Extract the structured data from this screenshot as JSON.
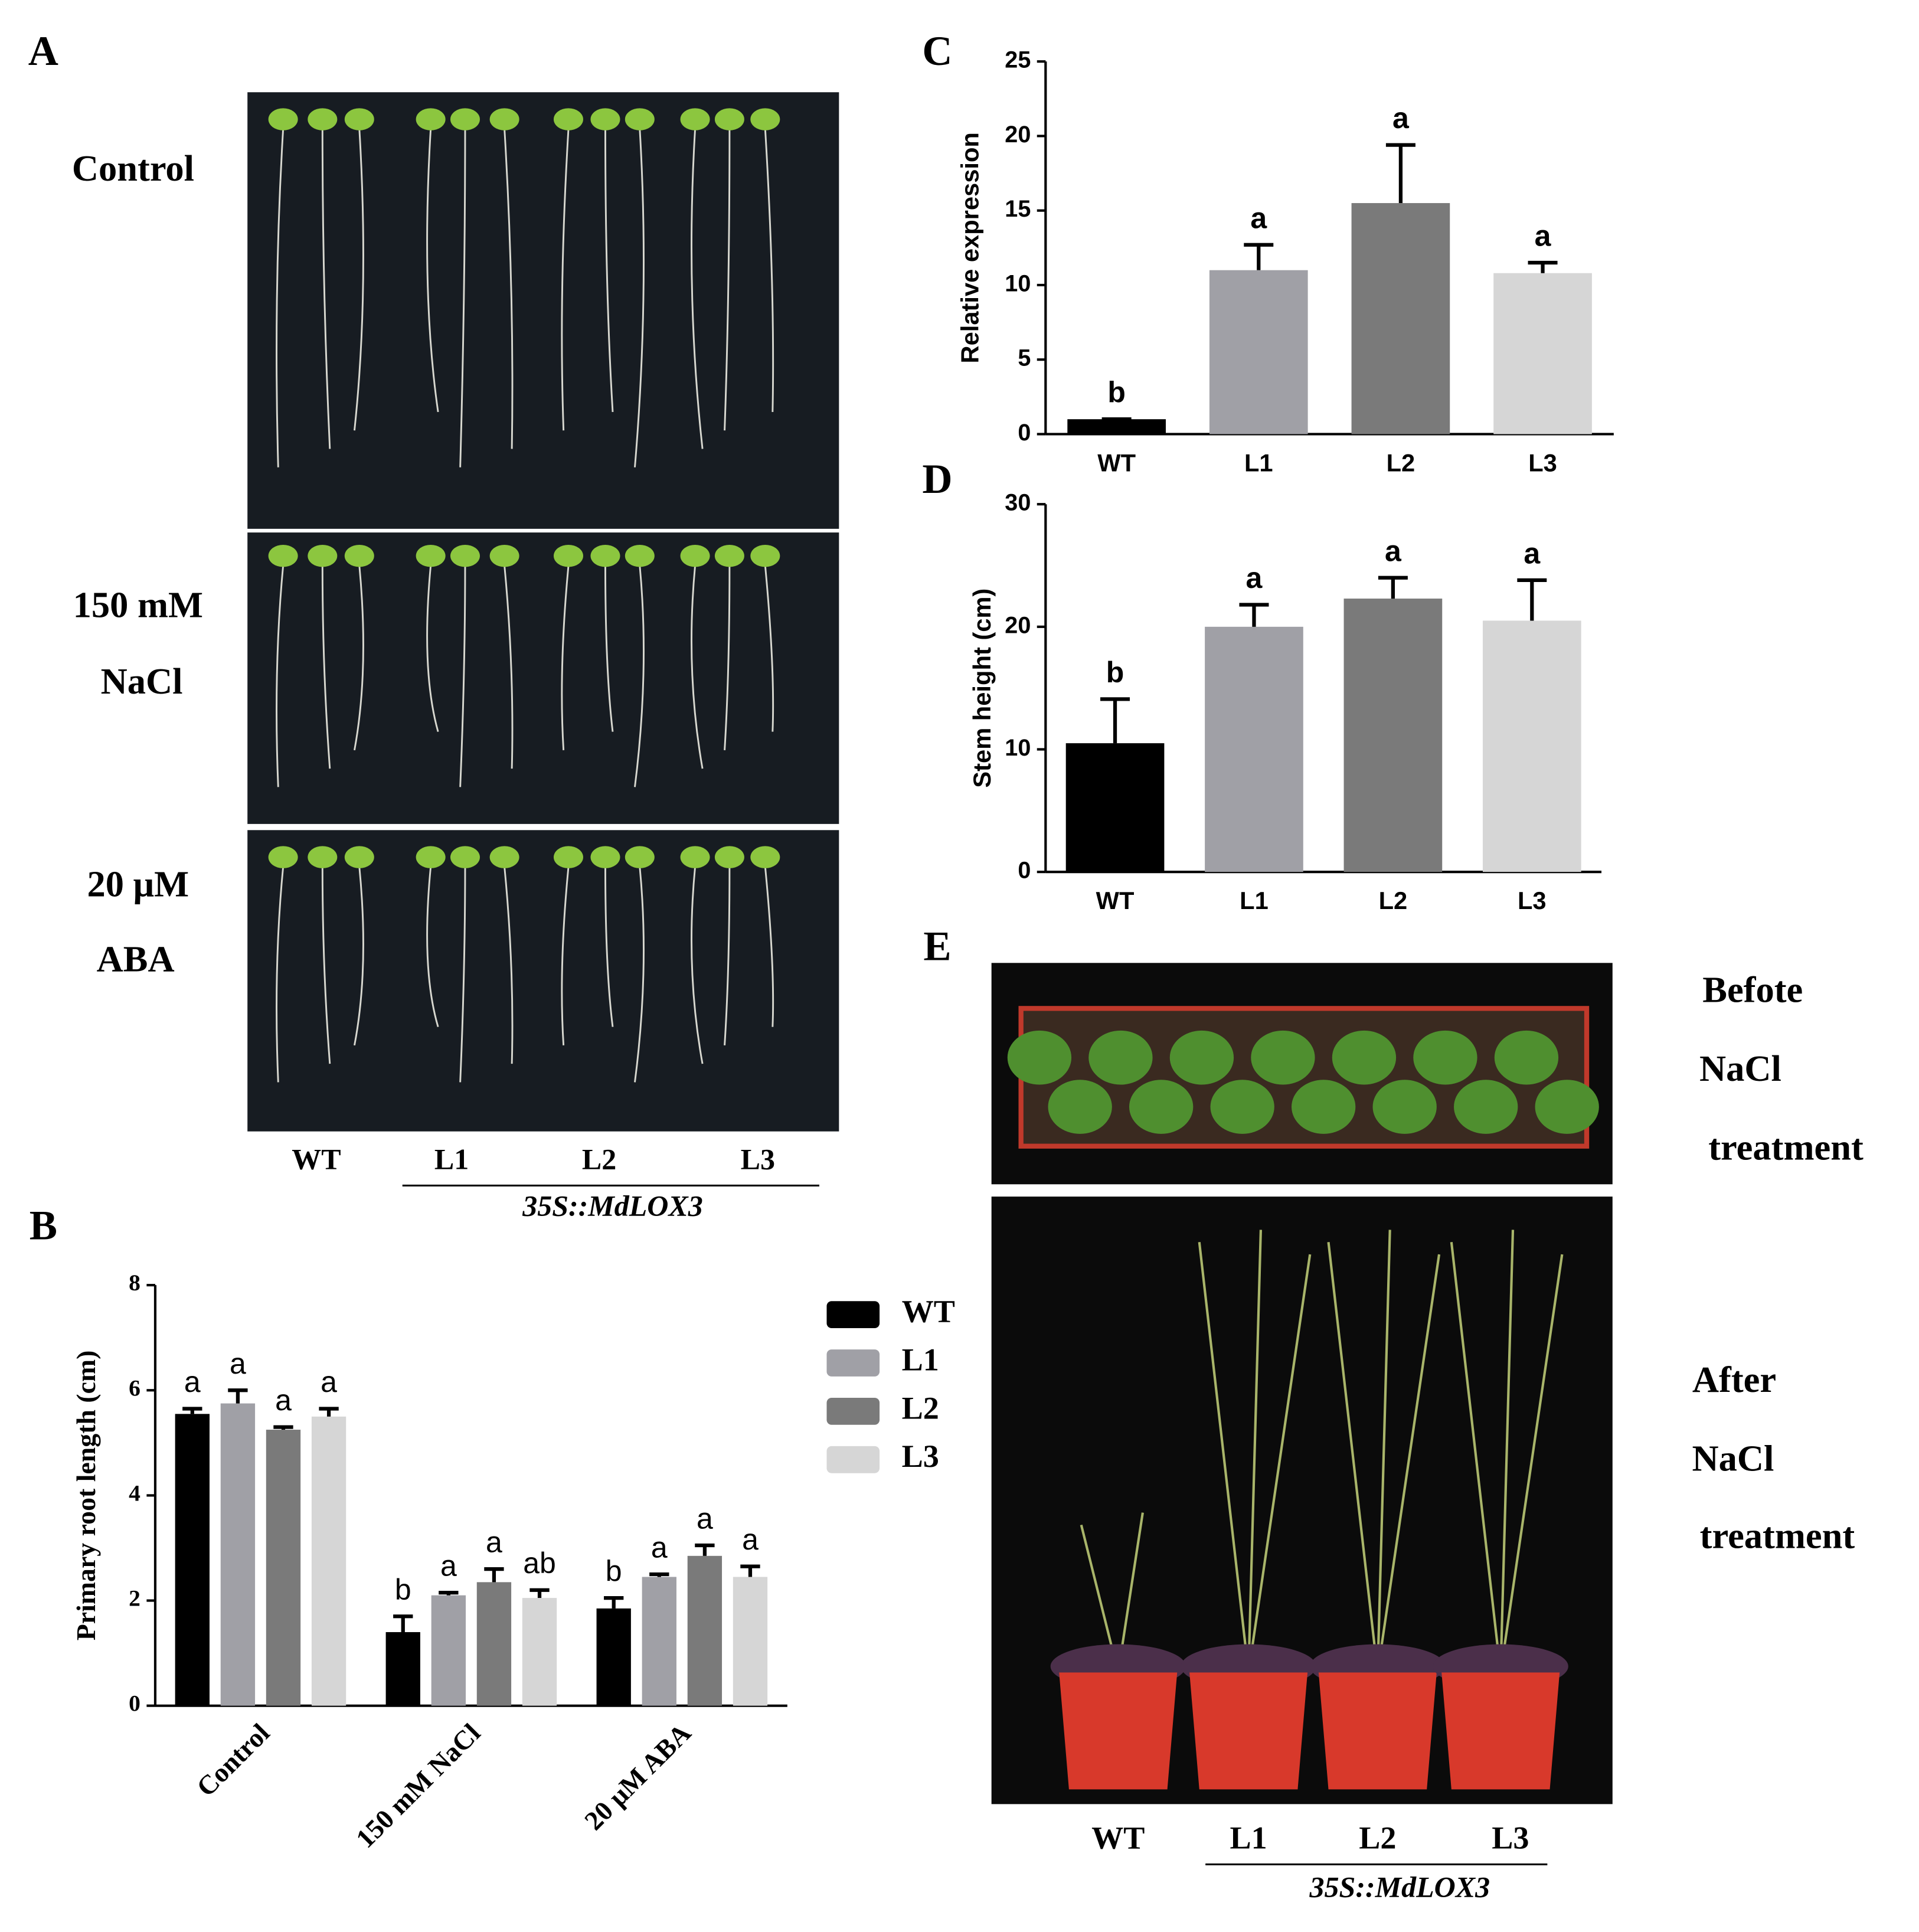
{
  "photo_a": {
    "label": "A",
    "rows": [
      "Control",
      "150 mM",
      "NaCl",
      "20 μM",
      "ABA"
    ],
    "lines": [
      "WT",
      "L1",
      "L2",
      "L3"
    ],
    "construct": "35S::MdLOX3"
  },
  "photo_e": {
    "label": "E",
    "before": [
      "Befote",
      "NaCl",
      "treatment"
    ],
    "after": [
      "After",
      "NaCl",
      "treatment"
    ],
    "lines": [
      "WT",
      "L1",
      "L2",
      "L3"
    ],
    "construct": "35S::MdLOX3"
  },
  "chart_data": [
    {
      "type": "grouped-bar",
      "label": "B",
      "ylabel": "Primary root length (cm)",
      "categories": [
        "Control",
        "150 mM NaCl",
        "20 μM ABA"
      ],
      "series": [
        {
          "name": "WT",
          "color": "#000000",
          "values": [
            5.55,
            1.4,
            1.85
          ],
          "errors": [
            0.1,
            0.3,
            0.2
          ],
          "letters": [
            "a",
            "b",
            "b"
          ]
        },
        {
          "name": "L1",
          "color": "#a0a0a6",
          "values": [
            5.75,
            2.1,
            2.45
          ],
          "errors": [
            0.25,
            0.05,
            0.05
          ],
          "letters": [
            "a",
            "a",
            "a"
          ]
        },
        {
          "name": "L2",
          "color": "#7a7a7a",
          "values": [
            5.25,
            2.35,
            2.85
          ],
          "errors": [
            0.05,
            0.25,
            0.2
          ],
          "letters": [
            "a",
            "a",
            "a"
          ]
        },
        {
          "name": "L3",
          "color": "#d6d6d6",
          "values": [
            5.5,
            2.05,
            2.45
          ],
          "errors": [
            0.15,
            0.15,
            0.2
          ],
          "letters": [
            "a",
            "ab",
            "a"
          ]
        }
      ],
      "ylim": [
        0,
        8
      ],
      "yticks": [
        0,
        2,
        4,
        6,
        8
      ],
      "legend": "right"
    },
    {
      "type": "bar",
      "label": "C",
      "ylabel": "Relative expression",
      "categories": [
        "WT",
        "L1",
        "L2",
        "L3"
      ],
      "values": [
        1,
        11,
        15.5,
        10.8
      ],
      "errors": [
        0,
        1.7,
        3.9,
        0.7
      ],
      "letters": [
        "b",
        "a",
        "a",
        "a"
      ],
      "colors": [
        "#000000",
        "#a0a0a6",
        "#7a7a7a",
        "#d6d6d6"
      ],
      "ylim": [
        0,
        25
      ],
      "yticks": [
        0,
        5,
        10,
        15,
        20,
        25
      ]
    },
    {
      "type": "bar",
      "label": "D",
      "ylabel": "Stem height (cm)",
      "categories": [
        "WT",
        "L1",
        "L2",
        "L3"
      ],
      "values": [
        10.5,
        20,
        22.3,
        20.5
      ],
      "errors": [
        3.6,
        1.8,
        1.7,
        3.3
      ],
      "letters": [
        "b",
        "a",
        "a",
        "a"
      ],
      "colors": [
        "#000000",
        "#a0a0a6",
        "#7a7a7a",
        "#d6d6d6"
      ],
      "ylim": [
        0,
        30
      ],
      "yticks": [
        0,
        10,
        20,
        30
      ]
    }
  ]
}
